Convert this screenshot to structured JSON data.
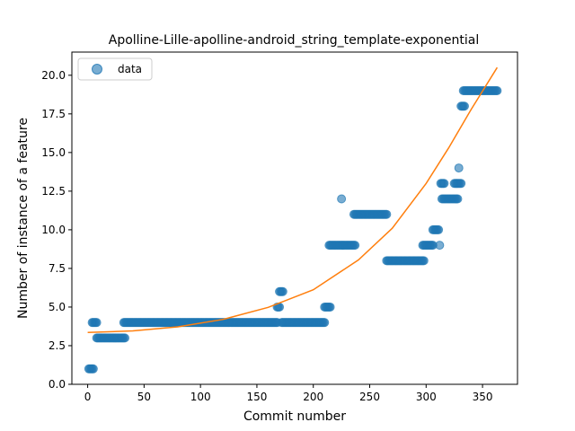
{
  "chart_data": {
    "type": "scatter",
    "title": "Apolline-Lille-apolline-android_string_template-exponential",
    "xlabel": "Commit number",
    "ylabel": "Number of instance of a feature",
    "xlim": [
      -14,
      381
    ],
    "ylim": [
      0,
      21.5
    ],
    "xticks": [
      0,
      50,
      100,
      150,
      200,
      250,
      300,
      350
    ],
    "yticks": [
      0.0,
      2.5,
      5.0,
      7.5,
      10.0,
      12.5,
      15.0,
      17.5,
      20.0
    ],
    "ytick_labels": [
      "0.0",
      "2.5",
      "5.0",
      "7.5",
      "10.0",
      "12.5",
      "15.0",
      "17.5",
      "20.0"
    ],
    "grid": false,
    "legend": {
      "position": "top-left",
      "entries": [
        "data"
      ]
    },
    "colors": {
      "data": "#1f77b4",
      "fit": "#ff7f0e"
    },
    "series": [
      {
        "name": "data",
        "kind": "scatter",
        "segments": [
          {
            "x_start": 1,
            "x_end": 5,
            "y": 1
          },
          {
            "x_start": 4,
            "x_end": 8,
            "y": 4
          },
          {
            "x_start": 8,
            "x_end": 33,
            "y": 3
          },
          {
            "x_start": 32,
            "x_end": 168,
            "y": 4
          },
          {
            "x_start": 168,
            "x_end": 170,
            "y": 5
          },
          {
            "x_start": 170,
            "x_end": 173,
            "y": 6
          },
          {
            "x_start": 172,
            "x_end": 210,
            "y": 4
          },
          {
            "x_start": 210,
            "x_end": 215,
            "y": 5
          },
          {
            "x_start": 214,
            "x_end": 237,
            "y": 9
          },
          {
            "x_start": 236,
            "x_end": 265,
            "y": 11
          },
          {
            "x_start": 265,
            "x_end": 298,
            "y": 8
          },
          {
            "x_start": 297,
            "x_end": 306,
            "y": 9
          },
          {
            "x_start": 306,
            "x_end": 311,
            "y": 10
          },
          {
            "x_start": 314,
            "x_end": 328,
            "y": 12
          },
          {
            "x_start": 313,
            "x_end": 316,
            "y": 13
          },
          {
            "x_start": 325,
            "x_end": 331,
            "y": 13
          },
          {
            "x_start": 331,
            "x_end": 334,
            "y": 18
          },
          {
            "x_start": 333,
            "x_end": 363,
            "y": 19
          }
        ],
        "points": [
          {
            "x": 225,
            "y": 12
          },
          {
            "x": 312,
            "y": 9
          },
          {
            "x": 329,
            "y": 14
          }
        ]
      },
      {
        "name": "fit",
        "kind": "line",
        "x": [
          0,
          40,
          80,
          120,
          160,
          200,
          240,
          270,
          300,
          320,
          340,
          363
        ],
        "y": [
          3.35,
          3.46,
          3.72,
          4.2,
          4.98,
          6.12,
          8.05,
          10.1,
          13.0,
          15.3,
          17.8,
          20.5
        ]
      }
    ]
  }
}
